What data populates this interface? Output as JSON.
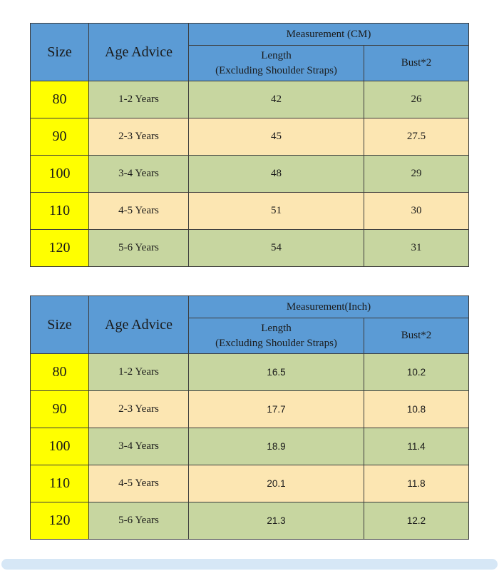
{
  "colors": {
    "header_blue": "#5b9bd5",
    "size_column_yellow": "#ffff00",
    "row_green": "#c7d6a0",
    "row_tan": "#fce6b2",
    "border": "#3c3c3c",
    "bottom_bar_blue": "#d6e7f6"
  },
  "tables": [
    {
      "headers": {
        "size": "Size",
        "age": "Age Advice",
        "measurement": "Measurement (CM)",
        "length_line1": "Length",
        "length_line2": "(Excluding Shoulder Straps)",
        "bust": "Bust*2"
      },
      "rows": [
        {
          "size": "80",
          "age": "1-2 Years",
          "length": "42",
          "bust": "26"
        },
        {
          "size": "90",
          "age": "2-3 Years",
          "length": "45",
          "bust": "27.5"
        },
        {
          "size": "100",
          "age": "3-4 Years",
          "length": "48",
          "bust": "29"
        },
        {
          "size": "110",
          "age": "4-5 Years",
          "length": "51",
          "bust": "30"
        },
        {
          "size": "120",
          "age": "5-6 Years",
          "length": "54",
          "bust": "31"
        }
      ]
    },
    {
      "headers": {
        "size": "Size",
        "age": "Age Advice",
        "measurement": "Measurement(Inch)",
        "length_line1": "Length",
        "length_line2": "(Excluding Shoulder Straps)",
        "bust": "Bust*2"
      },
      "rows": [
        {
          "size": "80",
          "age": "1-2 Years",
          "length": "16.5",
          "bust": "10.2"
        },
        {
          "size": "90",
          "age": "2-3 Years",
          "length": "17.7",
          "bust": "10.8"
        },
        {
          "size": "100",
          "age": "3-4 Years",
          "length": "18.9",
          "bust": "11.4"
        },
        {
          "size": "110",
          "age": "4-5 Years",
          "length": "20.1",
          "bust": "11.8"
        },
        {
          "size": "120",
          "age": "5-6 Years",
          "length": "21.3",
          "bust": "12.2"
        }
      ]
    }
  ],
  "chart_data": [
    {
      "type": "table",
      "title": "Measurement (CM)",
      "columns": [
        "Size",
        "Age Advice",
        "Length (Excluding Shoulder Straps)",
        "Bust*2"
      ],
      "rows": [
        [
          "80",
          "1-2 Years",
          42,
          26
        ],
        [
          "90",
          "2-3 Years",
          45,
          27.5
        ],
        [
          "100",
          "3-4 Years",
          48,
          29
        ],
        [
          "110",
          "4-5 Years",
          51,
          30
        ],
        [
          "120",
          "5-6 Years",
          54,
          31
        ]
      ]
    },
    {
      "type": "table",
      "title": "Measurement(Inch)",
      "columns": [
        "Size",
        "Age Advice",
        "Length (Excluding Shoulder Straps)",
        "Bust*2"
      ],
      "rows": [
        [
          "80",
          "1-2 Years",
          16.5,
          10.2
        ],
        [
          "90",
          "2-3 Years",
          17.7,
          10.8
        ],
        [
          "100",
          "3-4 Years",
          18.9,
          11.4
        ],
        [
          "110",
          "4-5 Years",
          20.1,
          11.8
        ],
        [
          "120",
          "5-6 Years",
          21.3,
          12.2
        ]
      ]
    }
  ]
}
